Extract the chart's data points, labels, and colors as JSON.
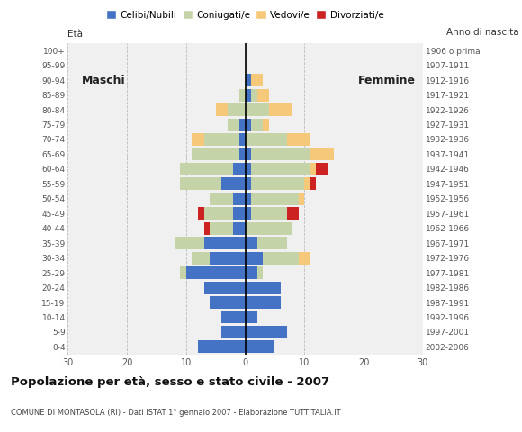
{
  "age_groups": [
    "0-4",
    "5-9",
    "10-14",
    "15-19",
    "20-24",
    "25-29",
    "30-34",
    "35-39",
    "40-44",
    "45-49",
    "50-54",
    "55-59",
    "60-64",
    "65-69",
    "70-74",
    "75-79",
    "80-84",
    "85-89",
    "90-94",
    "95-99",
    "100+"
  ],
  "birth_years": [
    "2002-2006",
    "1997-2001",
    "1992-1996",
    "1987-1991",
    "1982-1986",
    "1977-1981",
    "1972-1976",
    "1967-1971",
    "1962-1966",
    "1957-1961",
    "1952-1956",
    "1947-1951",
    "1942-1946",
    "1937-1941",
    "1932-1936",
    "1927-1931",
    "1922-1926",
    "1917-1921",
    "1912-1916",
    "1907-1911",
    "1906 o prima"
  ],
  "male": {
    "celibe": [
      8,
      4,
      4,
      6,
      7,
      10,
      6,
      7,
      2,
      2,
      2,
      4,
      2,
      1,
      1,
      1,
      0,
      0,
      0,
      0,
      0
    ],
    "coniugato": [
      0,
      0,
      0,
      0,
      0,
      1,
      3,
      5,
      4,
      5,
      4,
      7,
      9,
      8,
      6,
      2,
      3,
      1,
      0,
      0,
      0
    ],
    "vedovo": [
      0,
      0,
      0,
      0,
      0,
      0,
      0,
      0,
      0,
      0,
      0,
      0,
      0,
      0,
      2,
      0,
      2,
      0,
      0,
      0,
      0
    ],
    "divorziato": [
      0,
      0,
      0,
      0,
      0,
      0,
      0,
      0,
      1,
      1,
      0,
      0,
      0,
      0,
      0,
      0,
      0,
      0,
      0,
      0,
      0
    ]
  },
  "female": {
    "nubile": [
      5,
      7,
      2,
      6,
      6,
      2,
      3,
      2,
      0,
      1,
      1,
      1,
      1,
      1,
      0,
      1,
      0,
      1,
      1,
      0,
      0
    ],
    "coniugata": [
      0,
      0,
      0,
      0,
      0,
      1,
      6,
      5,
      8,
      6,
      8,
      9,
      10,
      10,
      7,
      2,
      4,
      1,
      0,
      0,
      0
    ],
    "vedova": [
      0,
      0,
      0,
      0,
      0,
      0,
      2,
      0,
      0,
      0,
      1,
      1,
      1,
      4,
      4,
      1,
      4,
      2,
      2,
      0,
      0
    ],
    "divorziata": [
      0,
      0,
      0,
      0,
      0,
      0,
      0,
      0,
      0,
      2,
      0,
      1,
      2,
      0,
      0,
      0,
      0,
      0,
      0,
      0,
      0
    ]
  },
  "colors": {
    "celibe": "#4472c4",
    "coniugato": "#c5d4a8",
    "vedovo": "#f5c87a",
    "divorziato": "#cc2222"
  },
  "xlim": 30,
  "title": "Popolazione per età, sesso e stato civile - 2007",
  "subtitle": "COMUNE DI MONTASOLA (RI) - Dati ISTAT 1° gennaio 2007 - Elaborazione TUTTITALIA.IT",
  "label_eta": "Età",
  "label_anno": "Anno di nascita",
  "label_maschi": "Maschi",
  "label_femmine": "Femmine",
  "legend_labels": [
    "Celibi/Nubili",
    "Coniugati/e",
    "Vedovi/e",
    "Divorziati/e"
  ],
  "bg_color": "#ffffff",
  "plot_bg_color": "#f0f0f0"
}
